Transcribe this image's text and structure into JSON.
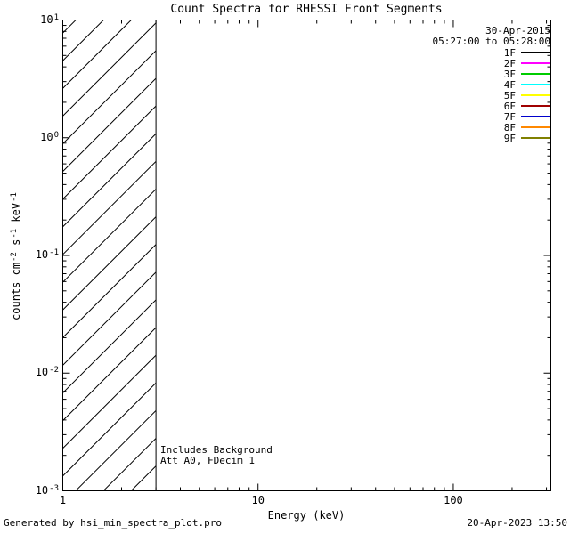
{
  "footer": {
    "left": "Generated by hsi_min_spectra_plot.pro",
    "right": "20-Apr-2023 13:50"
  },
  "chart_data": {
    "type": "line",
    "title": "Count Spectra for RHESSI Front Segments",
    "xlabel": "Energy (keV)",
    "ylabel": "counts cm^-2 s^-1 keV^-1",
    "ylabel_parts": [
      {
        "t": "counts cm"
      },
      {
        "sup": "-2"
      },
      {
        "t": " s"
      },
      {
        "sup": "-1"
      },
      {
        "t": " keV"
      },
      {
        "sup": "-1"
      }
    ],
    "x_scale": "log",
    "y_scale": "log",
    "xlim": [
      1,
      316
    ],
    "ylim": [
      0.001,
      10
    ],
    "x_major_ticks": [
      1,
      10,
      100
    ],
    "x_tick_labels": [
      "1",
      "10",
      "100"
    ],
    "y_major_ticks": [
      0.001,
      0.01,
      0.1,
      1,
      10
    ],
    "grid": false,
    "series": [],
    "hatched_region": {
      "x_start": 1,
      "x_end": 3
    },
    "annotations": [
      "Includes Background",
      "Att A0, FDecim 1"
    ],
    "legend": {
      "position": "top-right",
      "date": "30-Apr-2015",
      "time_range": "05:27:00 to 05:28:00",
      "entries": [
        {
          "label": "1F",
          "color": "#000000"
        },
        {
          "label": "2F",
          "color": "#ff00ff"
        },
        {
          "label": "3F",
          "color": "#00cc00"
        },
        {
          "label": "4F",
          "color": "#00ffff"
        },
        {
          "label": "5F",
          "color": "#ffff00"
        },
        {
          "label": "6F",
          "color": "#a00000"
        },
        {
          "label": "7F",
          "color": "#0000cc"
        },
        {
          "label": "8F",
          "color": "#ff8800"
        },
        {
          "label": "9F",
          "color": "#808000"
        }
      ]
    }
  }
}
